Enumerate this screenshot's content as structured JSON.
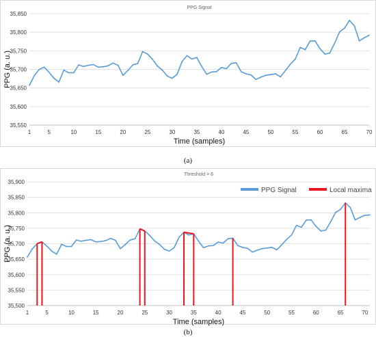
{
  "chart_data": [
    {
      "type": "line",
      "title": "PPG Signal",
      "xlabel": "Time (samples)",
      "ylabel": "PPG (a. u.)",
      "panel_label": "(a)",
      "xlim": [
        1,
        70
      ],
      "ylim": [
        35550,
        35850
      ],
      "x_ticks": [
        1,
        5,
        10,
        15,
        20,
        25,
        30,
        35,
        40,
        45,
        50,
        55,
        60,
        65,
        70
      ],
      "y_ticks": [
        35550,
        35600,
        35650,
        35700,
        35750,
        35800,
        35850
      ],
      "y_tick_labels": [
        "35,550",
        "35,600",
        "35,650",
        "35,700",
        "35,750",
        "35,800",
        "35,850"
      ],
      "grid": true,
      "series": [
        {
          "color": "#5b9bd5",
          "x": [
            1,
            2,
            3,
            4,
            5,
            6,
            7,
            8,
            9,
            10,
            11,
            12,
            13,
            14,
            15,
            16,
            17,
            18,
            19,
            20,
            21,
            22,
            23,
            24,
            25,
            26,
            27,
            28,
            29,
            30,
            31,
            32,
            33,
            34,
            35,
            36,
            37,
            38,
            39,
            40,
            41,
            42,
            43,
            44,
            45,
            46,
            47,
            48,
            49,
            50,
            51,
            52,
            53,
            54,
            55,
            56,
            57,
            58,
            59,
            60,
            61,
            62,
            63,
            64,
            65,
            66,
            67,
            68,
            69,
            70
          ],
          "values": [
            35657,
            35683,
            35700,
            35706,
            35692,
            35676,
            35666,
            35698,
            35691,
            35691,
            35712,
            35708,
            35711,
            35713,
            35706,
            35707,
            35710,
            35717,
            35711,
            35684,
            35697,
            35712,
            35716,
            35748,
            35741,
            35727,
            35709,
            35698,
            35682,
            35676,
            35687,
            35721,
            35737,
            35728,
            35732,
            35708,
            35687,
            35693,
            35694,
            35705,
            35702,
            35716,
            35718,
            35694,
            35688,
            35685,
            35673,
            35679,
            35684,
            35686,
            35688,
            35680,
            35697,
            35714,
            35728,
            35759,
            35753,
            35776,
            35777,
            35756,
            35741,
            35744,
            35771,
            35801,
            35811,
            35832,
            35817,
            35777,
            35785,
            35792
          ]
        }
      ]
    },
    {
      "type": "line",
      "title": "Threshold = 6",
      "xlabel": "Time (samples)",
      "ylabel": "PPG (a. u.)",
      "panel_label": "(b)",
      "xlim": [
        1,
        71
      ],
      "ylim": [
        35500,
        35900
      ],
      "x_ticks": [
        1,
        5,
        10,
        15,
        20,
        25,
        30,
        35,
        40,
        45,
        50,
        55,
        60,
        65,
        70
      ],
      "y_ticks": [
        35500,
        35550,
        35600,
        35650,
        35700,
        35750,
        35800,
        35850,
        35900
      ],
      "y_tick_labels": [
        "35,500",
        "35,550",
        "35,600",
        "35,650",
        "35,700",
        "35,750",
        "35,800",
        "35,850",
        "35,900"
      ],
      "grid": true,
      "legend": {
        "placement": "top-right"
      },
      "series": [
        {
          "name": "PPG Signal",
          "color": "#5b9bd5",
          "x": [
            1,
            2,
            3,
            4,
            5,
            6,
            7,
            8,
            9,
            10,
            11,
            12,
            13,
            14,
            15,
            16,
            17,
            18,
            19,
            20,
            21,
            22,
            23,
            24,
            25,
            26,
            27,
            28,
            29,
            30,
            31,
            32,
            33,
            34,
            35,
            36,
            37,
            38,
            39,
            40,
            41,
            42,
            43,
            44,
            45,
            46,
            47,
            48,
            49,
            50,
            51,
            52,
            53,
            54,
            55,
            56,
            57,
            58,
            59,
            60,
            61,
            62,
            63,
            64,
            65,
            66,
            67,
            68,
            69,
            70,
            71
          ],
          "values": [
            35657,
            35683,
            35700,
            35706,
            35692,
            35676,
            35666,
            35698,
            35691,
            35691,
            35712,
            35708,
            35711,
            35713,
            35706,
            35707,
            35710,
            35717,
            35711,
            35684,
            35697,
            35712,
            35716,
            35748,
            35741,
            35727,
            35709,
            35698,
            35682,
            35676,
            35687,
            35721,
            35737,
            35728,
            35732,
            35708,
            35687,
            35693,
            35694,
            35705,
            35702,
            35716,
            35718,
            35694,
            35688,
            35685,
            35673,
            35679,
            35684,
            35686,
            35688,
            35680,
            35697,
            35714,
            35728,
            35759,
            35753,
            35776,
            35777,
            35756,
            35741,
            35744,
            35771,
            35801,
            35811,
            35832,
            35817,
            35777,
            35785,
            35792,
            35793
          ]
        },
        {
          "name": "Local maxima",
          "color": "#e8171f",
          "x": [
            3,
            4,
            24,
            25,
            33,
            35,
            43,
            66
          ],
          "values": [
            35700,
            35706,
            35748,
            35741,
            35737,
            35732,
            35718,
            35832
          ]
        }
      ]
    }
  ]
}
